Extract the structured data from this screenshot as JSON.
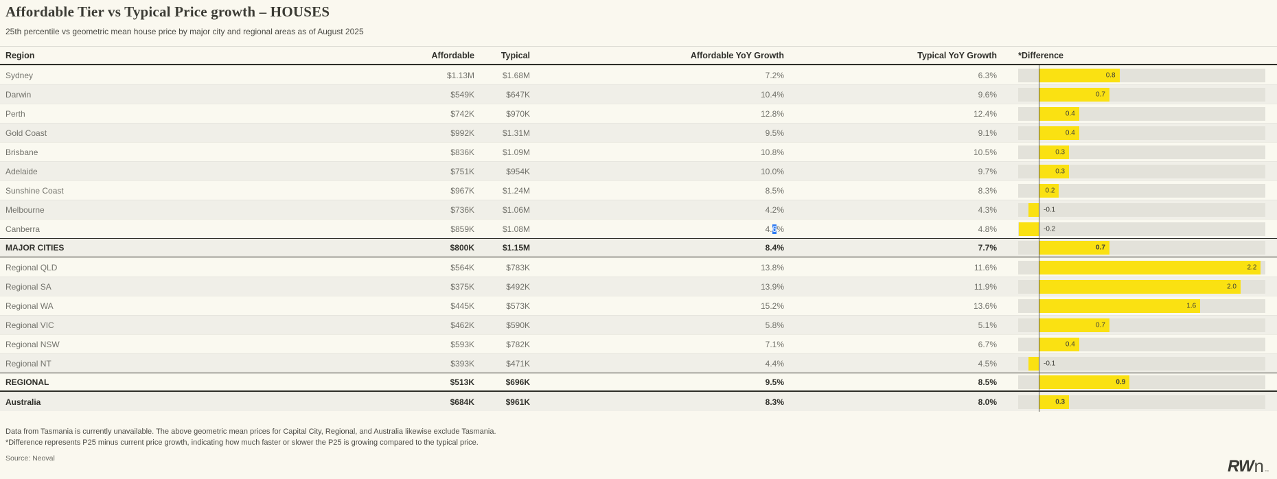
{
  "header": {
    "title": "Affordable Tier vs Typical Price growth – HOUSES",
    "subtitle": "25th percentile vs geometric mean house price by major city and regional areas as of August 2025"
  },
  "columns": {
    "region": "Region",
    "affordable": "Affordable",
    "typical": "Typical",
    "affordable_yoy": "Affordable YoY Growth",
    "typical_yoy": "Typical YoY Growth",
    "difference": "*Difference"
  },
  "chart_data": {
    "type": "table",
    "embedded_bar_column": "*Difference",
    "bar_axis_range": [
      -0.2,
      2.2
    ],
    "bar_color": "#fae112",
    "rows": [
      {
        "region": "Sydney",
        "affordable": "$1.13M",
        "typical": "$1.68M",
        "affordable_yoy": "7.2%",
        "typical_yoy": "6.3%",
        "difference": 0.8,
        "difference_label": "0.8",
        "bold": false
      },
      {
        "region": "Darwin",
        "affordable": "$549K",
        "typical": "$647K",
        "affordable_yoy": "10.4%",
        "typical_yoy": "9.6%",
        "difference": 0.7,
        "difference_label": "0.7",
        "bold": false
      },
      {
        "region": "Perth",
        "affordable": "$742K",
        "typical": "$970K",
        "affordable_yoy": "12.8%",
        "typical_yoy": "12.4%",
        "difference": 0.4,
        "difference_label": "0.4",
        "bold": false
      },
      {
        "region": "Gold Coast",
        "affordable": "$992K",
        "typical": "$1.31M",
        "affordable_yoy": "9.5%",
        "typical_yoy": "9.1%",
        "difference": 0.4,
        "difference_label": "0.4",
        "bold": false
      },
      {
        "region": "Brisbane",
        "affordable": "$836K",
        "typical": "$1.09M",
        "affordable_yoy": "10.8%",
        "typical_yoy": "10.5%",
        "difference": 0.3,
        "difference_label": "0.3",
        "bold": false
      },
      {
        "region": "Adelaide",
        "affordable": "$751K",
        "typical": "$954K",
        "affordable_yoy": "10.0%",
        "typical_yoy": "9.7%",
        "difference": 0.3,
        "difference_label": "0.3",
        "bold": false
      },
      {
        "region": "Sunshine Coast",
        "affordable": "$967K",
        "typical": "$1.24M",
        "affordable_yoy": "8.5%",
        "typical_yoy": "8.3%",
        "difference": 0.2,
        "difference_label": "0.2",
        "bold": false
      },
      {
        "region": "Melbourne",
        "affordable": "$736K",
        "typical": "$1.06M",
        "affordable_yoy": "4.2%",
        "typical_yoy": "4.3%",
        "difference": -0.1,
        "difference_label": "-0.1",
        "bold": false
      },
      {
        "region": "Canberra",
        "affordable": "$859K",
        "typical": "$1.08M",
        "affordable_yoy": "4.6%",
        "typical_yoy": "4.8%",
        "difference": -0.2,
        "difference_label": "-0.2",
        "bold": false,
        "selection": {
          "before": "4.",
          "selected": "6",
          "after": "%"
        }
      },
      {
        "region": "MAJOR CITIES",
        "affordable": "$800K",
        "typical": "$1.15M",
        "affordable_yoy": "8.4%",
        "typical_yoy": "7.7%",
        "difference": 0.7,
        "difference_label": "0.7",
        "bold": true,
        "line_top": true,
        "line_bottom": true
      },
      {
        "region": "Regional QLD",
        "affordable": "$564K",
        "typical": "$783K",
        "affordable_yoy": "13.8%",
        "typical_yoy": "11.6%",
        "difference": 2.2,
        "difference_label": "2.2",
        "bold": false
      },
      {
        "region": "Regional SA",
        "affordable": "$375K",
        "typical": "$492K",
        "affordable_yoy": "13.9%",
        "typical_yoy": "11.9%",
        "difference": 2.0,
        "difference_label": "2.0",
        "bold": false
      },
      {
        "region": "Regional WA",
        "affordable": "$445K",
        "typical": "$573K",
        "affordable_yoy": "15.2%",
        "typical_yoy": "13.6%",
        "difference": 1.6,
        "difference_label": "1.6",
        "bold": false
      },
      {
        "region": "Regional VIC",
        "affordable": "$462K",
        "typical": "$590K",
        "affordable_yoy": "5.8%",
        "typical_yoy": "5.1%",
        "difference": 0.7,
        "difference_label": "0.7",
        "bold": false
      },
      {
        "region": "Regional NSW",
        "affordable": "$593K",
        "typical": "$782K",
        "affordable_yoy": "7.1%",
        "typical_yoy": "6.7%",
        "difference": 0.4,
        "difference_label": "0.4",
        "bold": false
      },
      {
        "region": "Regional NT",
        "affordable": "$393K",
        "typical": "$471K",
        "affordable_yoy": "4.4%",
        "typical_yoy": "4.5%",
        "difference": -0.1,
        "difference_label": "-0.1",
        "bold": false
      },
      {
        "region": "REGIONAL",
        "affordable": "$513K",
        "typical": "$696K",
        "affordable_yoy": "9.5%",
        "typical_yoy": "8.5%",
        "difference": 0.9,
        "difference_label": "0.9",
        "bold": true,
        "line_top": true,
        "line_bottom_thick": true
      },
      {
        "region": "Australia",
        "affordable": "$684K",
        "typical": "$961K",
        "affordable_yoy": "8.3%",
        "typical_yoy": "8.0%",
        "difference": 0.3,
        "difference_label": "0.3",
        "bold": true
      }
    ]
  },
  "footer": {
    "note1": "Data from Tasmania is currently unavailable. The above geometric mean prices for Capital City, Regional, and Australia likewise exclude Tasmania.",
    "note2": "*Difference represents P25 minus current price growth, indicating how much faster or slower the P25 is growing compared to the typical price.",
    "source": "Source: Neoval"
  },
  "logo": {
    "bold": "RW",
    "light": "n",
    "mark": "™"
  },
  "colors": {
    "background": "#faf8ef",
    "stripe_light": "#faf9f0",
    "stripe_dark": "#f0efe8",
    "bar_track": "#e3e2da",
    "bar_yellow": "#fae112",
    "selection_blue": "#2f7bf2",
    "rule_dark": "#2e2e28"
  }
}
